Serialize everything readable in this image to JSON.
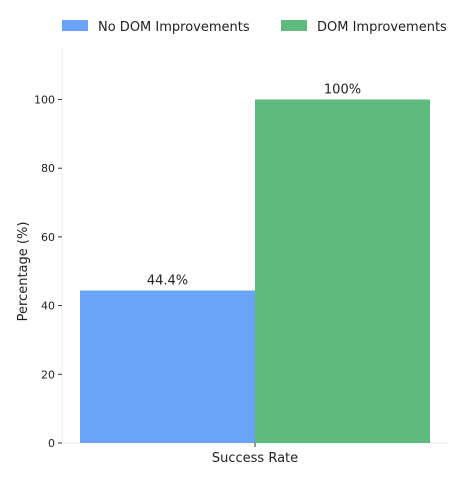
{
  "chart_data": {
    "type": "bar",
    "categories": [
      "Success Rate"
    ],
    "series": [
      {
        "name": "No DOM Improvements",
        "values": [
          44.4
        ],
        "label": "44.4%",
        "color": "#6aa3f8"
      },
      {
        "name": "DOM Improvements",
        "values": [
          100
        ],
        "label": "100%",
        "color": "#5fba7d"
      }
    ],
    "title": "",
    "xlabel": "",
    "ylabel": "Percentage (%)",
    "ylim": [
      0,
      115
    ],
    "yticks": [
      0,
      20,
      40,
      60,
      80,
      100
    ],
    "ytick_labels": [
      "0",
      "20",
      "40",
      "60",
      "80",
      "100"
    ],
    "grid": false,
    "legend_position": "top"
  }
}
